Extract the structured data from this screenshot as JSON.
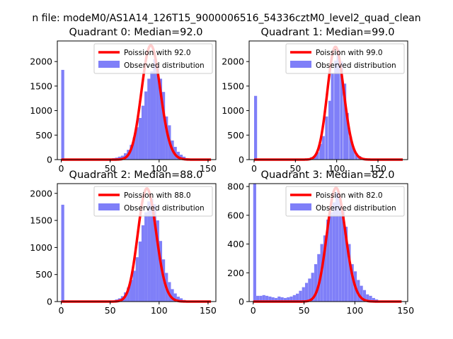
{
  "figure_title": "n file: modeM0/AS1A14_126T15_9000006516_54336cztM0_level2_quad_clean",
  "colors": {
    "hist": "#7f7ff8",
    "hist_edge": "#7f7ff8",
    "curve": "#ff0000",
    "axis": "#000000"
  },
  "chart_data": [
    {
      "type": "bar",
      "title": "Quadrant 0: Median=92.0",
      "xlabel": "",
      "ylabel": "",
      "xlim": [
        -4,
        158
      ],
      "ylim": [
        0,
        2420
      ],
      "xticks": [
        0,
        50,
        100,
        150
      ],
      "yticks": [
        0,
        500,
        1000,
        1500,
        2000
      ],
      "legend": {
        "position": "top-right",
        "entries": [
          "Poission with 92.0",
          "Observed distribution"
        ]
      },
      "poisson_lambda": 92,
      "curve_scale": 2330,
      "curve_x_range": [
        0,
        153
      ],
      "bin_width": 3.06,
      "hist_bins": [
        {
          "x": 0,
          "y": 1830
        },
        {
          "x": 52,
          "y": 30
        },
        {
          "x": 55,
          "y": 40
        },
        {
          "x": 58,
          "y": 60
        },
        {
          "x": 61,
          "y": 80
        },
        {
          "x": 64,
          "y": 130
        },
        {
          "x": 67,
          "y": 200
        },
        {
          "x": 70,
          "y": 300
        },
        {
          "x": 73,
          "y": 450
        },
        {
          "x": 76,
          "y": 660
        },
        {
          "x": 79,
          "y": 850
        },
        {
          "x": 82,
          "y": 1100
        },
        {
          "x": 85,
          "y": 1390
        },
        {
          "x": 88,
          "y": 1650
        },
        {
          "x": 91,
          "y": 1800
        },
        {
          "x": 94,
          "y": 2050
        },
        {
          "x": 97,
          "y": 1920
        },
        {
          "x": 100,
          "y": 1650
        },
        {
          "x": 103,
          "y": 1380
        },
        {
          "x": 106,
          "y": 880
        },
        {
          "x": 109,
          "y": 700
        },
        {
          "x": 112,
          "y": 390
        },
        {
          "x": 115,
          "y": 260
        },
        {
          "x": 118,
          "y": 160
        },
        {
          "x": 121,
          "y": 100
        },
        {
          "x": 124,
          "y": 60
        },
        {
          "x": 127,
          "y": 30
        },
        {
          "x": 130,
          "y": 15
        }
      ]
    },
    {
      "type": "bar",
      "title": "Quadrant 1: Median=99.0",
      "xlabel": "",
      "ylabel": "",
      "xlim": [
        -6,
        186
      ],
      "ylim": [
        0,
        2420
      ],
      "xticks": [
        0,
        50,
        100,
        150
      ],
      "yticks": [
        0,
        500,
        1000,
        1500,
        2000
      ],
      "legend": {
        "position": "top-right",
        "entries": [
          "Poission with 99.0",
          "Observed distribution"
        ]
      },
      "poisson_lambda": 99,
      "curve_scale": 2300,
      "curve_x_range": [
        0,
        180
      ],
      "bin_width": 3.6,
      "hist_bins": [
        {
          "x": 0,
          "y": 1300
        },
        {
          "x": 60,
          "y": 20
        },
        {
          "x": 64,
          "y": 30
        },
        {
          "x": 68,
          "y": 50
        },
        {
          "x": 72,
          "y": 80
        },
        {
          "x": 75,
          "y": 150
        },
        {
          "x": 79,
          "y": 320
        },
        {
          "x": 82,
          "y": 480
        },
        {
          "x": 86,
          "y": 880
        },
        {
          "x": 90,
          "y": 1200
        },
        {
          "x": 93,
          "y": 1750
        },
        {
          "x": 97,
          "y": 2020
        },
        {
          "x": 100,
          "y": 2250
        },
        {
          "x": 104,
          "y": 2000
        },
        {
          "x": 108,
          "y": 1550
        },
        {
          "x": 111,
          "y": 950
        },
        {
          "x": 115,
          "y": 470
        },
        {
          "x": 118,
          "y": 250
        },
        {
          "x": 122,
          "y": 130
        },
        {
          "x": 126,
          "y": 70
        },
        {
          "x": 129,
          "y": 30
        }
      ]
    },
    {
      "type": "bar",
      "title": "Quadrant 2: Median=88.0",
      "xlabel": "",
      "ylabel": "",
      "xlim": [
        -4,
        158
      ],
      "ylim": [
        0,
        2180
      ],
      "xticks": [
        0,
        50,
        100,
        150
      ],
      "yticks": [
        0,
        500,
        1000,
        1500,
        2000
      ],
      "legend": {
        "position": "top-right",
        "entries": [
          "Poission with 88.0",
          "Observed distribution"
        ]
      },
      "poisson_lambda": 88,
      "curve_scale": 2090,
      "curve_x_range": [
        0,
        153
      ],
      "bin_width": 3.06,
      "hist_bins": [
        {
          "x": 0,
          "y": 1790
        },
        {
          "x": 49,
          "y": 10
        },
        {
          "x": 52,
          "y": 20
        },
        {
          "x": 55,
          "y": 40
        },
        {
          "x": 58,
          "y": 60
        },
        {
          "x": 61,
          "y": 100
        },
        {
          "x": 64,
          "y": 170
        },
        {
          "x": 67,
          "y": 260
        },
        {
          "x": 70,
          "y": 400
        },
        {
          "x": 73,
          "y": 570
        },
        {
          "x": 76,
          "y": 820
        },
        {
          "x": 79,
          "y": 1110
        },
        {
          "x": 82,
          "y": 1410
        },
        {
          "x": 85,
          "y": 1650
        },
        {
          "x": 88,
          "y": 1850
        },
        {
          "x": 91,
          "y": 1900
        },
        {
          "x": 94,
          "y": 1800
        },
        {
          "x": 97,
          "y": 1500
        },
        {
          "x": 100,
          "y": 1120
        },
        {
          "x": 103,
          "y": 780
        },
        {
          "x": 106,
          "y": 530
        },
        {
          "x": 109,
          "y": 360
        },
        {
          "x": 112,
          "y": 230
        },
        {
          "x": 115,
          "y": 150
        },
        {
          "x": 118,
          "y": 90
        },
        {
          "x": 121,
          "y": 60
        },
        {
          "x": 124,
          "y": 30
        },
        {
          "x": 127,
          "y": 15
        }
      ]
    },
    {
      "type": "bar",
      "title": "Quadrant 3: Median=82.0",
      "xlabel": "",
      "ylabel": "",
      "xlim": [
        -4,
        152
      ],
      "ylim": [
        0,
        820
      ],
      "xticks": [
        0,
        50,
        100,
        150
      ],
      "yticks": [
        0,
        200,
        400,
        600,
        800
      ],
      "legend": {
        "position": "top-right",
        "entries": [
          "Poission with 82.0",
          "Observed distribution"
        ]
      },
      "poisson_lambda": 82,
      "curve_scale": 790,
      "curve_x_range": [
        0,
        146
      ],
      "bin_width": 2.92,
      "hist_bins": [
        {
          "x": 0,
          "y": 820
        },
        {
          "x": 3,
          "y": 40
        },
        {
          "x": 6,
          "y": 40
        },
        {
          "x": 9,
          "y": 45
        },
        {
          "x": 12,
          "y": 40
        },
        {
          "x": 15,
          "y": 35
        },
        {
          "x": 18,
          "y": 30
        },
        {
          "x": 21,
          "y": 25
        },
        {
          "x": 24,
          "y": 35
        },
        {
          "x": 27,
          "y": 30
        },
        {
          "x": 30,
          "y": 25
        },
        {
          "x": 33,
          "y": 30
        },
        {
          "x": 36,
          "y": 35
        },
        {
          "x": 39,
          "y": 45
        },
        {
          "x": 42,
          "y": 55
        },
        {
          "x": 45,
          "y": 75
        },
        {
          "x": 48,
          "y": 100
        },
        {
          "x": 51,
          "y": 130
        },
        {
          "x": 54,
          "y": 160
        },
        {
          "x": 57,
          "y": 200
        },
        {
          "x": 60,
          "y": 260
        },
        {
          "x": 63,
          "y": 330
        },
        {
          "x": 66,
          "y": 400
        },
        {
          "x": 69,
          "y": 460
        },
        {
          "x": 72,
          "y": 570
        },
        {
          "x": 75,
          "y": 620
        },
        {
          "x": 78,
          "y": 690
        },
        {
          "x": 81,
          "y": 760
        },
        {
          "x": 84,
          "y": 730
        },
        {
          "x": 87,
          "y": 640
        },
        {
          "x": 90,
          "y": 520
        },
        {
          "x": 93,
          "y": 400
        },
        {
          "x": 96,
          "y": 260
        },
        {
          "x": 99,
          "y": 210
        },
        {
          "x": 102,
          "y": 150
        },
        {
          "x": 105,
          "y": 110
        },
        {
          "x": 108,
          "y": 80
        },
        {
          "x": 111,
          "y": 50
        },
        {
          "x": 114,
          "y": 40
        },
        {
          "x": 117,
          "y": 25
        },
        {
          "x": 120,
          "y": 15
        }
      ]
    }
  ]
}
